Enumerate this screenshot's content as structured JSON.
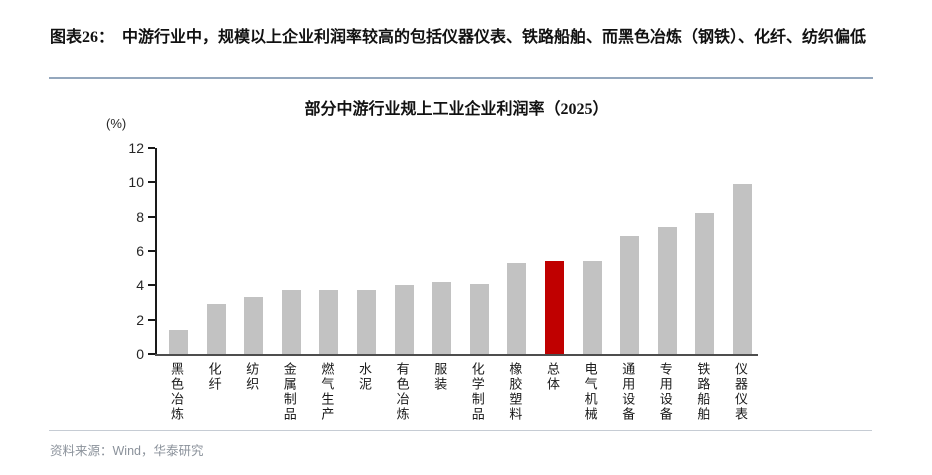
{
  "figure": {
    "caption": "图表26：  中游行业中，规模以上企业利润率较高的包括仪器仪表、铁路船舶、而黑色冶炼（钢铁）、化纤、纺织偏低",
    "source": "资料来源：Wind，华泰研究"
  },
  "chart_data": {
    "type": "bar",
    "title": "部分中游行业规上工业企业利润率（2025）",
    "unit_label": "(%)",
    "categories": [
      "黑色冶炼",
      "化纤",
      "纺织",
      "金属制品",
      "燃气生产",
      "水泥",
      "有色冶炼",
      "服装",
      "化学制品",
      "橡胶塑料",
      "总体",
      "电气机械",
      "通用设备",
      "专用设备",
      "铁路船舶",
      "仪器仪表"
    ],
    "values": [
      1.4,
      2.9,
      3.3,
      3.7,
      3.7,
      3.7,
      4.0,
      4.2,
      4.1,
      5.3,
      5.4,
      5.4,
      6.9,
      7.4,
      8.2,
      9.9
    ],
    "highlight_index": 10,
    "highlight_category": "总体",
    "bar_color": "#c2c2c2",
    "highlight_color": "#c00000",
    "xlabel": "",
    "ylabel": "(%)",
    "ylim": [
      0,
      12
    ],
    "yticks": [
      0,
      2,
      4,
      6,
      8,
      10,
      12
    ],
    "grid": false,
    "legend": false
  }
}
